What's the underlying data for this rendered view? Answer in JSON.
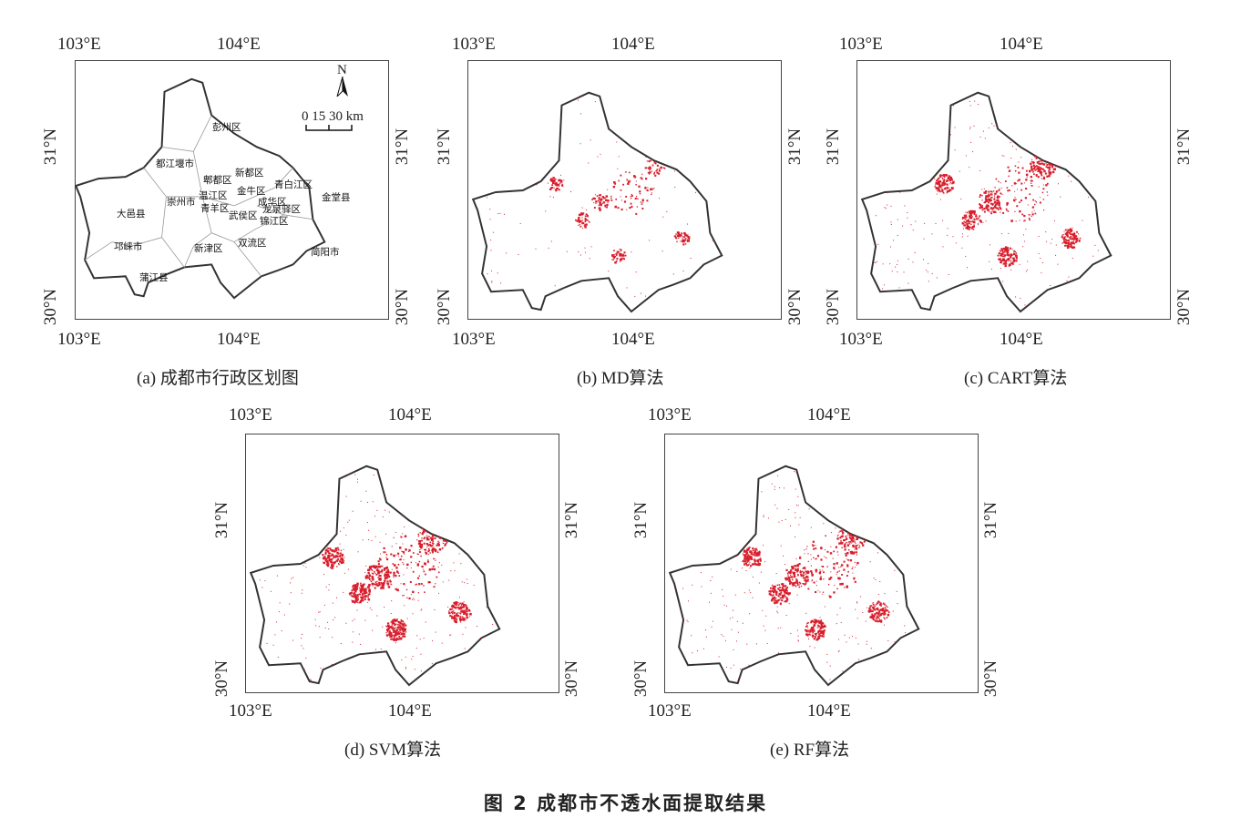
{
  "colors": {
    "impervious": "#d81e2c",
    "boundary": "#333333",
    "district_lines": "#888888"
  },
  "axes": {
    "lon_left": "103°E",
    "lon_right": "104°E",
    "lat_top": "31°N",
    "lat_bottom": "30°N",
    "lon_left_alt": "103°E",
    "lon_right_alt": "104°E"
  },
  "panels": [
    {
      "id": "a",
      "caption": "(a) 成都市行政区划图"
    },
    {
      "id": "b",
      "caption": "(b) MD算法"
    },
    {
      "id": "c",
      "caption": "(c) CART算法"
    },
    {
      "id": "d",
      "caption": "(d) SVM算法"
    },
    {
      "id": "e",
      "caption": "(e) RF算法"
    }
  ],
  "panel_d_lon": [
    "103°E",
    "104°E"
  ],
  "scale_bar": {
    "north": "N",
    "text": "0  15 30 km"
  },
  "districts": [
    "彭州区",
    "都江堰市",
    "郫都区",
    "新都区",
    "青白江区",
    "崇州市",
    "温江区",
    "金牛区",
    "成华区",
    "金堂县",
    "大邑县",
    "青羊区",
    "武侯区",
    "龙泉驿区",
    "锦江区",
    "邛崃市",
    "新津区",
    "双流区",
    "简阳市",
    "蒲江县"
  ],
  "density": {
    "b": 0.35,
    "c": 0.8,
    "d": 1.0,
    "e": 0.9
  },
  "figure_caption": "图 2    成都市不透水面提取结果"
}
